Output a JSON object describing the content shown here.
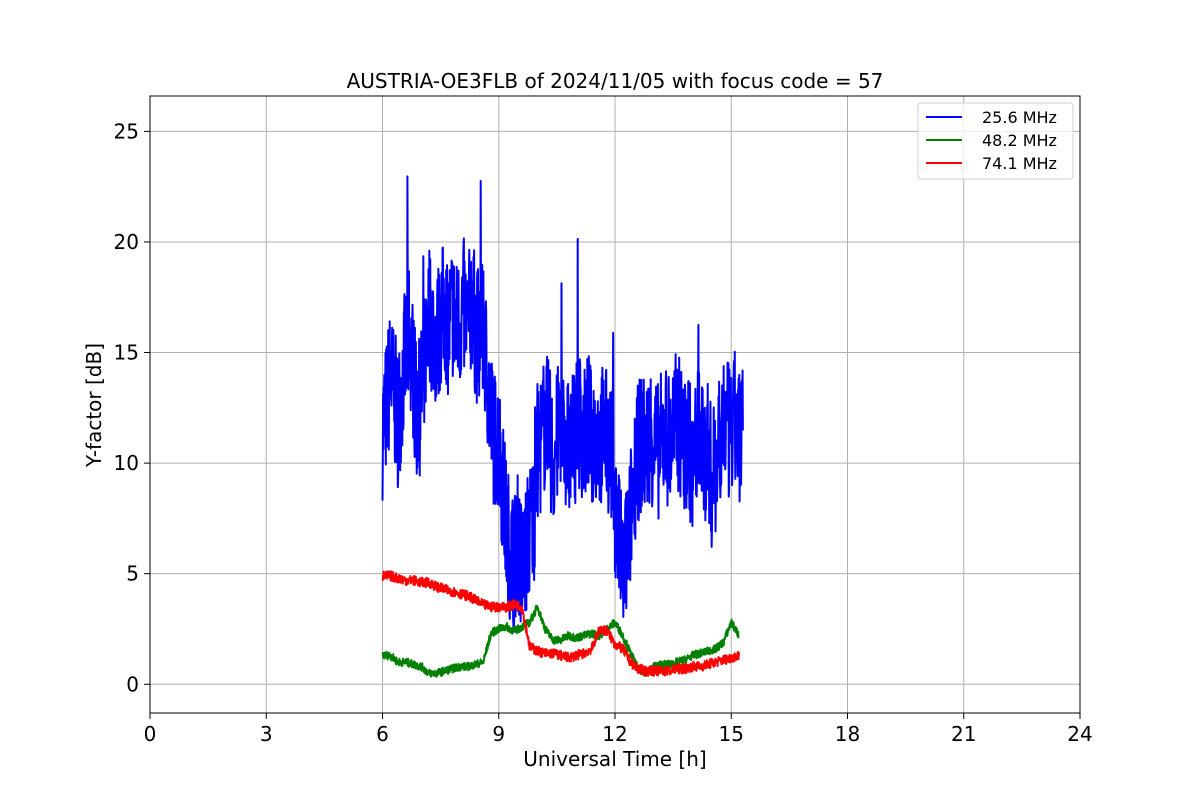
{
  "chart_data": {
    "type": "line",
    "title": "AUSTRIA-OE3FLB of 2024/11/05 with focus code = 57",
    "xlabel": "Universal Time [h]",
    "ylabel": "Y-factor [dB]",
    "xlim": [
      0,
      24
    ],
    "ylim": [
      -1.3,
      26.6
    ],
    "xticks": [
      0,
      3,
      6,
      9,
      12,
      15,
      18,
      21,
      24
    ],
    "yticks": [
      0,
      5,
      10,
      15,
      20,
      25
    ],
    "xtick_labels": [
      "0",
      "3",
      "6",
      "9",
      "12",
      "15",
      "18",
      "21",
      "24"
    ],
    "ytick_labels": [
      "0",
      "5",
      "10",
      "15",
      "20",
      "25"
    ],
    "grid": true,
    "legend_position": "top-right",
    "series": [
      {
        "name": "25.6 MHz",
        "color": "#0000ff",
        "x": [
          6.0,
          6.1,
          6.2,
          6.3,
          6.4,
          6.5,
          6.6,
          6.7,
          6.8,
          6.9,
          7.0,
          7.1,
          7.2,
          7.3,
          7.4,
          7.5,
          7.6,
          7.7,
          7.8,
          7.9,
          8.0,
          8.1,
          8.2,
          8.3,
          8.4,
          8.5,
          8.6,
          8.7,
          8.8,
          8.9,
          9.0,
          9.1,
          9.2,
          9.3,
          9.4,
          9.5,
          9.6,
          9.7,
          9.8,
          9.9,
          10.0,
          10.1,
          10.2,
          10.3,
          10.4,
          10.5,
          10.6,
          10.7,
          10.8,
          10.9,
          11.0,
          11.1,
          11.2,
          11.3,
          11.4,
          11.5,
          11.6,
          11.7,
          11.8,
          11.9,
          12.0,
          12.1,
          12.2,
          12.3,
          12.4,
          12.5,
          12.6,
          12.7,
          12.8,
          12.9,
          13.0,
          13.1,
          13.2,
          13.3,
          13.4,
          13.5,
          13.6,
          13.7,
          13.8,
          13.9,
          14.0,
          14.1,
          14.2,
          14.3,
          14.4,
          14.5,
          14.6,
          14.7,
          14.8,
          14.9,
          15.0,
          15.1,
          15.2,
          15.3
        ],
        "y": [
          11.5,
          12.5,
          14.0,
          13.0,
          12.0,
          13.5,
          15.0,
          16.0,
          14.0,
          12.0,
          13.0,
          15.0,
          17.0,
          16.0,
          15.5,
          16.5,
          17.0,
          16.0,
          17.0,
          16.0,
          16.5,
          17.0,
          16.0,
          17.5,
          16.0,
          15.5,
          16.0,
          14.0,
          12.0,
          11.0,
          11.0,
          9.0,
          7.0,
          6.0,
          5.5,
          6.5,
          5.0,
          6.0,
          7.0,
          7.5,
          10.5,
          11.0,
          12.0,
          11.5,
          10.0,
          11.0,
          12.0,
          11.5,
          10.5,
          11.0,
          11.5,
          12.0,
          11.0,
          12.0,
          11.0,
          11.5,
          11.0,
          11.5,
          11.0,
          10.5,
          8.0,
          6.5,
          5.0,
          6.0,
          7.5,
          9.5,
          10.5,
          11.0,
          10.5,
          11.5,
          11.0,
          10.5,
          11.0,
          11.5,
          11.0,
          11.5,
          12.0,
          11.5,
          10.5,
          11.5,
          9.0,
          11.0,
          11.5,
          10.0,
          11.0,
          9.0,
          10.0,
          11.5,
          12.0,
          11.5,
          11.0,
          12.0,
          11.5,
          11.0
        ]
      },
      {
        "name": "48.2 MHz",
        "color": "#008000",
        "x": [
          6.0,
          6.2,
          6.4,
          6.6,
          6.8,
          7.0,
          7.2,
          7.4,
          7.6,
          7.8,
          8.0,
          8.2,
          8.4,
          8.6,
          8.8,
          9.0,
          9.2,
          9.4,
          9.6,
          9.8,
          10.0,
          10.2,
          10.4,
          10.6,
          10.8,
          11.0,
          11.2,
          11.4,
          11.6,
          11.8,
          12.0,
          12.2,
          12.4,
          12.6,
          12.8,
          13.0,
          13.2,
          13.4,
          13.6,
          13.8,
          14.0,
          14.2,
          14.4,
          14.6,
          14.8,
          15.0,
          15.2
        ],
        "y": [
          1.3,
          1.3,
          1.0,
          1.0,
          0.9,
          0.8,
          0.5,
          0.5,
          0.6,
          0.7,
          0.8,
          0.8,
          0.9,
          1.0,
          2.3,
          2.5,
          2.6,
          2.4,
          2.6,
          2.8,
          3.5,
          2.5,
          2.0,
          2.0,
          2.2,
          2.1,
          2.2,
          2.3,
          2.2,
          2.5,
          2.8,
          2.2,
          1.4,
          0.7,
          0.5,
          0.8,
          0.9,
          0.9,
          1.0,
          1.1,
          1.3,
          1.4,
          1.5,
          1.6,
          1.9,
          2.8,
          2.2
        ]
      },
      {
        "name": "74.1 MHz",
        "color": "#ff0000",
        "x": [
          6.0,
          6.2,
          6.4,
          6.6,
          6.8,
          7.0,
          7.2,
          7.4,
          7.6,
          7.8,
          8.0,
          8.2,
          8.4,
          8.6,
          8.8,
          9.0,
          9.2,
          9.4,
          9.6,
          9.8,
          10.0,
          10.2,
          10.4,
          10.6,
          10.8,
          11.0,
          11.2,
          11.4,
          11.6,
          11.8,
          12.0,
          12.2,
          12.4,
          12.6,
          12.8,
          13.0,
          13.2,
          13.4,
          13.6,
          13.8,
          14.0,
          14.2,
          14.4,
          14.6,
          14.8,
          15.0,
          15.2
        ],
        "y": [
          4.9,
          4.9,
          4.8,
          4.7,
          4.7,
          4.6,
          4.6,
          4.4,
          4.3,
          4.2,
          4.1,
          4.0,
          3.8,
          3.6,
          3.5,
          3.5,
          3.5,
          3.6,
          3.5,
          1.7,
          1.5,
          1.4,
          1.4,
          1.3,
          1.2,
          1.3,
          1.4,
          1.6,
          2.5,
          2.4,
          1.8,
          1.6,
          1.0,
          0.7,
          0.6,
          0.6,
          0.6,
          0.6,
          0.7,
          0.7,
          0.8,
          0.8,
          0.9,
          1.0,
          1.1,
          1.2,
          1.3
        ]
      }
    ]
  }
}
